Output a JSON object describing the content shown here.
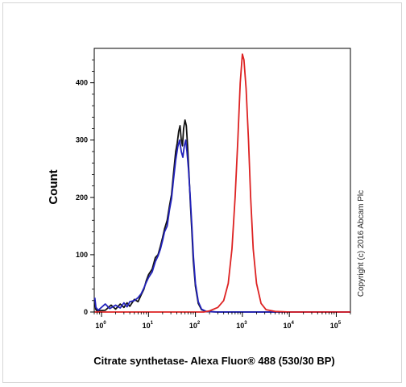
{
  "chart_data": {
    "type": "line",
    "title": "",
    "xlabel": "Citrate synthetase- Alexa Fluor® 488 (530/30 BP)",
    "ylabel": "Count",
    "x_scale": "log",
    "xlim": [
      0.7,
      200000
    ],
    "ylim": [
      0,
      460
    ],
    "x_ticks": [
      {
        "value": 1,
        "base": "10",
        "exp": "0"
      },
      {
        "value": 10,
        "base": "10",
        "exp": "1"
      },
      {
        "value": 100,
        "base": "10",
        "exp": "2"
      },
      {
        "value": 1000,
        "base": "10",
        "exp": "3"
      },
      {
        "value": 10000,
        "base": "10",
        "exp": "4"
      },
      {
        "value": 100000,
        "base": "10",
        "exp": "5"
      }
    ],
    "y_ticks": [
      {
        "value": 0,
        "label": "0"
      },
      {
        "value": 100,
        "label": "100"
      },
      {
        "value": 200,
        "label": "200"
      },
      {
        "value": 300,
        "label": "300"
      },
      {
        "value": 400,
        "label": "400"
      }
    ],
    "annotation": "Copyright (c) 2016 Abcam Plc",
    "series": [
      {
        "color": "#111111",
        "points": [
          [
            0.72,
            20
          ],
          [
            0.75,
            5
          ],
          [
            0.8,
            2
          ],
          [
            1.2,
            3
          ],
          [
            1.6,
            12
          ],
          [
            2,
            5
          ],
          [
            2.5,
            14
          ],
          [
            3,
            8
          ],
          [
            3.5,
            16
          ],
          [
            4,
            10
          ],
          [
            5,
            22
          ],
          [
            6,
            18
          ],
          [
            7,
            30
          ],
          [
            8,
            40
          ],
          [
            9,
            55
          ],
          [
            10,
            65
          ],
          [
            12,
            75
          ],
          [
            14,
            95
          ],
          [
            16,
            100
          ],
          [
            18,
            115
          ],
          [
            20,
            130
          ],
          [
            22,
            145
          ],
          [
            25,
            160
          ],
          [
            28,
            185
          ],
          [
            31,
            205
          ],
          [
            34,
            240
          ],
          [
            38,
            280
          ],
          [
            41,
            295
          ],
          [
            44,
            315
          ],
          [
            47,
            325
          ],
          [
            50,
            300
          ],
          [
            53,
            290
          ],
          [
            56,
            320
          ],
          [
            60,
            335
          ],
          [
            64,
            325
          ],
          [
            68,
            290
          ],
          [
            73,
            240
          ],
          [
            78,
            190
          ],
          [
            84,
            140
          ],
          [
            90,
            90
          ],
          [
            100,
            45
          ],
          [
            115,
            15
          ],
          [
            135,
            4
          ],
          [
            170,
            1
          ],
          [
            300,
            0
          ],
          [
            1000,
            0
          ],
          [
            200000,
            0
          ]
        ]
      },
      {
        "color": "#2222bb",
        "points": [
          [
            0.72,
            25
          ],
          [
            0.76,
            8
          ],
          [
            0.85,
            3
          ],
          [
            1.2,
            14
          ],
          [
            1.5,
            6
          ],
          [
            2,
            12
          ],
          [
            2.5,
            7
          ],
          [
            3,
            16
          ],
          [
            3.5,
            9
          ],
          [
            4,
            18
          ],
          [
            5,
            20
          ],
          [
            6,
            25
          ],
          [
            7,
            32
          ],
          [
            8,
            42
          ],
          [
            9,
            52
          ],
          [
            10,
            60
          ],
          [
            12,
            70
          ],
          [
            14,
            88
          ],
          [
            16,
            98
          ],
          [
            18,
            110
          ],
          [
            20,
            125
          ],
          [
            22,
            140
          ],
          [
            25,
            150
          ],
          [
            28,
            178
          ],
          [
            31,
            198
          ],
          [
            34,
            230
          ],
          [
            38,
            265
          ],
          [
            42,
            288
          ],
          [
            46,
            300
          ],
          [
            50,
            280
          ],
          [
            54,
            270
          ],
          [
            58,
            290
          ],
          [
            62,
            300
          ],
          [
            66,
            280
          ],
          [
            71,
            250
          ],
          [
            77,
            205
          ],
          [
            84,
            150
          ],
          [
            91,
            95
          ],
          [
            100,
            50
          ],
          [
            115,
            18
          ],
          [
            135,
            5
          ],
          [
            170,
            1
          ],
          [
            300,
            0
          ],
          [
            1000,
            0
          ],
          [
            200000,
            0
          ]
        ]
      },
      {
        "color": "#dd2222",
        "points": [
          [
            0.72,
            0
          ],
          [
            150,
            0
          ],
          [
            200,
            2
          ],
          [
            300,
            8
          ],
          [
            400,
            20
          ],
          [
            500,
            50
          ],
          [
            600,
            110
          ],
          [
            700,
            200
          ],
          [
            800,
            300
          ],
          [
            900,
            400
          ],
          [
            1000,
            450
          ],
          [
            1080,
            440
          ],
          [
            1200,
            390
          ],
          [
            1350,
            300
          ],
          [
            1500,
            200
          ],
          [
            1700,
            110
          ],
          [
            2000,
            50
          ],
          [
            2500,
            15
          ],
          [
            3200,
            4
          ],
          [
            5000,
            1
          ],
          [
            10000,
            0
          ],
          [
            200000,
            0
          ]
        ]
      }
    ]
  }
}
